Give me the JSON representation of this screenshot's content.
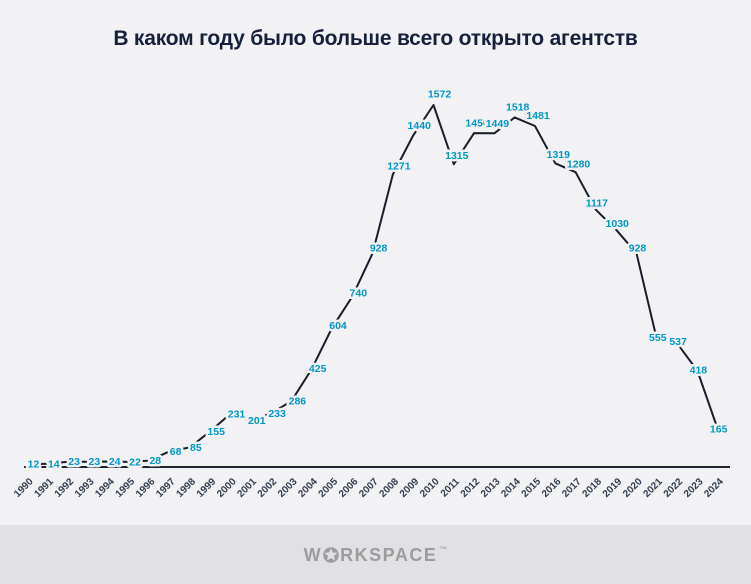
{
  "title": "В каком году было больше всего открыто агентств",
  "footer": {
    "brand": "WORKSPACE",
    "brand_left": "W",
    "brand_right": "RKSPACE",
    "star_icon": "star-in-circle-icon",
    "trademark": "™"
  },
  "colors": {
    "background": "#f2f2f4",
    "footer_background": "#e1e1e3",
    "title_text": "#17203a",
    "value_label": "#0096c5",
    "series_line": "#171d29",
    "axis_line": "#1c2431",
    "year_label": "#333d4e",
    "logo_gray": "#9c9c9e"
  },
  "chart_data": {
    "type": "line",
    "title": "В каком году было больше всего открыто агентств",
    "xlabel": "",
    "ylabel": "",
    "grid": false,
    "legend": false,
    "point_labels": true,
    "ylim": [
      0,
      1572
    ],
    "x": [
      "1990",
      "1991",
      "1992",
      "1993",
      "1994",
      "1995",
      "1996",
      "1997",
      "1998",
      "1999",
      "2000",
      "2001",
      "2002",
      "2003",
      "2004",
      "2005",
      "2006",
      "2007",
      "2008",
      "2009",
      "2010",
      "2011",
      "2012",
      "2013",
      "2014",
      "2015",
      "2016",
      "2017",
      "2018",
      "2019",
      "2020",
      "2021",
      "2022",
      "2023",
      "2024"
    ],
    "values": [
      12,
      14,
      23,
      23,
      24,
      22,
      28,
      68,
      85,
      155,
      231,
      201,
      233,
      286,
      425,
      604,
      740,
      928,
      1271,
      1440,
      1572,
      1315,
      1450,
      1449,
      1518,
      1481,
      1319,
      1280,
      1117,
      1030,
      928,
      555,
      537,
      418,
      165
    ],
    "max_value": 1572,
    "max_year": "2010"
  }
}
